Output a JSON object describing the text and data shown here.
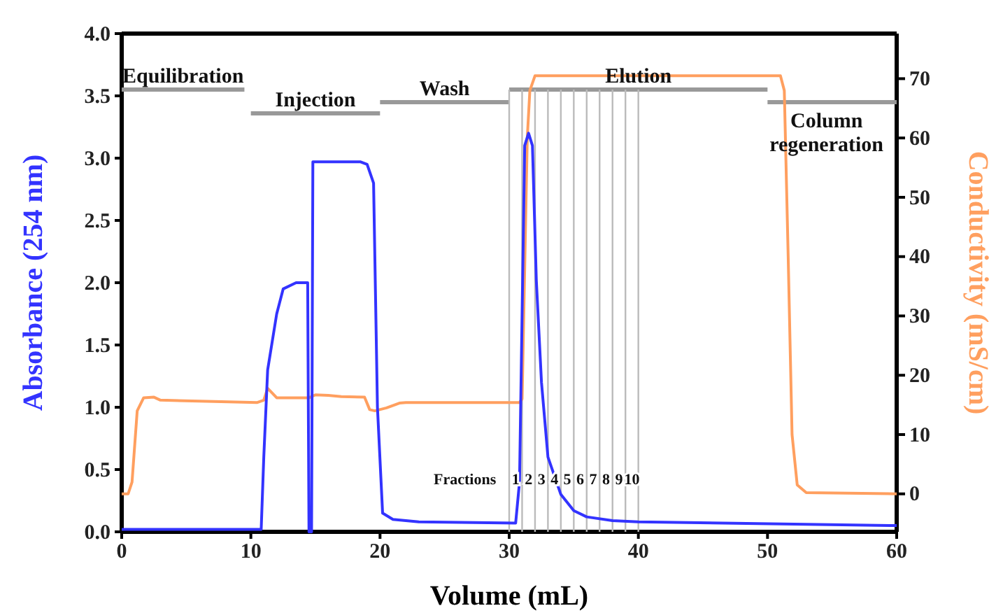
{
  "chart_data": {
    "type": "line",
    "xlabel": "Volume (mL)",
    "ylabel": "Absorbance (254 nm)",
    "y2label": "Conductivity (mS/cm)",
    "xlim": [
      0,
      60
    ],
    "xticks": [
      0,
      10,
      20,
      30,
      40,
      50,
      60
    ],
    "ylim": [
      0,
      4
    ],
    "yticks": [
      {
        "value": 0,
        "label": "0.0"
      },
      {
        "value": 0.5,
        "label": "0.5"
      },
      {
        "value": 1,
        "label": "1.0"
      },
      {
        "value": 1.5,
        "label": "1.5"
      },
      {
        "value": 2,
        "label": "2.0"
      },
      {
        "value": 2.5,
        "label": "2.5"
      },
      {
        "value": 3,
        "label": "3.0"
      },
      {
        "value": 3.5,
        "label": "3.5"
      },
      {
        "value": 4,
        "label": "4.0"
      }
    ],
    "y2lim": [
      -6.4,
      77.6
    ],
    "y2ticks": [
      0,
      10,
      20,
      30,
      40,
      50,
      60,
      70
    ],
    "grid": false,
    "series": [
      {
        "name": "Equilibration",
        "color": "#999999",
        "x": [
          0,
          9.5
        ],
        "values": [
          3.55,
          3.55
        ]
      },
      {
        "name": "Injection",
        "color": "#999999",
        "x": [
          10,
          20
        ],
        "values": [
          3.36,
          3.36
        ]
      },
      {
        "name": "Wash",
        "color": "#999999",
        "x": [
          20,
          30
        ],
        "values": [
          3.45,
          3.45
        ]
      },
      {
        "name": "Elution",
        "color": "#999999",
        "x": [
          30,
          50
        ],
        "values": [
          3.55,
          3.55
        ]
      },
      {
        "name": "Column regeneration",
        "color": "#999999",
        "x": [
          50,
          60
        ],
        "values": [
          3.45,
          3.45
        ]
      },
      {
        "color": "#bbbbbb",
        "x": [
          30,
          30
        ],
        "values": [
          0,
          3.55
        ]
      },
      {
        "color": "#bbbbbb",
        "x": [
          31,
          31
        ],
        "values": [
          0,
          3.55
        ]
      },
      {
        "color": "#bbbbbb",
        "x": [
          32,
          32
        ],
        "values": [
          0,
          3.55
        ]
      },
      {
        "color": "#bbbbbb",
        "x": [
          33,
          33
        ],
        "values": [
          0,
          3.55
        ]
      },
      {
        "color": "#bbbbbb",
        "x": [
          34,
          34
        ],
        "values": [
          0,
          3.55
        ]
      },
      {
        "color": "#bbbbbb",
        "x": [
          35,
          35
        ],
        "values": [
          0,
          3.55
        ]
      },
      {
        "color": "#bbbbbb",
        "x": [
          36,
          36
        ],
        "values": [
          0,
          3.55
        ]
      },
      {
        "color": "#bbbbbb",
        "x": [
          37,
          37
        ],
        "values": [
          0,
          3.55
        ]
      },
      {
        "color": "#bbbbbb",
        "x": [
          38,
          38
        ],
        "values": [
          0,
          3.55
        ]
      },
      {
        "color": "#bbbbbb",
        "x": [
          39,
          39
        ],
        "values": [
          0,
          3.55
        ]
      },
      {
        "color": "#bbbbbb",
        "x": [
          40,
          40
        ],
        "values": [
          0,
          3.55
        ]
      },
      {
        "color": "#ff9f5f",
        "axis": "y2",
        "x": [
          0,
          0.5,
          0.8,
          1.2,
          1.7,
          2.5,
          3,
          10.5,
          11,
          11.3,
          12,
          14.5,
          15,
          16,
          17,
          18.8,
          19.2,
          19.6,
          20.5,
          21.5,
          22,
          30.8,
          31,
          31.4,
          31.6,
          32,
          40,
          51,
          51.3,
          51.6,
          51.9,
          52.3,
          53,
          60
        ],
        "values": [
          0,
          0,
          2,
          14,
          16.2,
          16.3,
          15.8,
          15.4,
          15.8,
          17.8,
          16.2,
          16.2,
          16.7,
          16.6,
          16.4,
          16.3,
          14.2,
          14,
          14.5,
          15.3,
          15.4,
          15.4,
          16,
          60,
          68,
          70.5,
          70.5,
          70.5,
          68,
          40,
          10,
          1.5,
          0.2,
          0
        ]
      },
      {
        "color": "#3333ff",
        "x": [
          0,
          10.8,
          11,
          11.3,
          12,
          12.5,
          13.5,
          14.4,
          14.5,
          14.7,
          14.8,
          15,
          18.5,
          19,
          19.5,
          19.8,
          20.2,
          21,
          23,
          30.5,
          30.8,
          31.2,
          31.5,
          31.8,
          32.1,
          32.5,
          33,
          34,
          35,
          36,
          38,
          40,
          60
        ],
        "values": [
          0.02,
          0.02,
          0.6,
          1.3,
          1.75,
          1.95,
          2,
          2,
          0,
          0,
          2.97,
          2.97,
          2.97,
          2.95,
          2.8,
          1,
          0.15,
          0.1,
          0.08,
          0.07,
          0.4,
          3.1,
          3.2,
          3.1,
          2.02,
          1.2,
          0.6,
          0.3,
          0.17,
          0.12,
          0.09,
          0.08,
          0.05
        ]
      }
    ],
    "annotations": [
      "Fractions",
      {
        "text": "1",
        "x": 30.5,
        "y": 0.38
      },
      {
        "text": "2",
        "x": 31.5,
        "y": 0.38
      },
      {
        "text": "3",
        "x": 32.5,
        "y": 0.38
      },
      {
        "text": "4",
        "x": 33.5,
        "y": 0.38
      },
      {
        "text": "5",
        "x": 34.5,
        "y": 0.38
      },
      {
        "text": "6",
        "x": 35.5,
        "y": 0.38
      },
      {
        "text": "7",
        "x": 36.5,
        "y": 0.38
      },
      {
        "text": "8",
        "x": 37.5,
        "y": 0.38
      },
      {
        "text": "9",
        "x": 38.5,
        "y": 0.38
      },
      {
        "text": "10",
        "x": 39.5,
        "y": 0.38
      }
    ]
  }
}
